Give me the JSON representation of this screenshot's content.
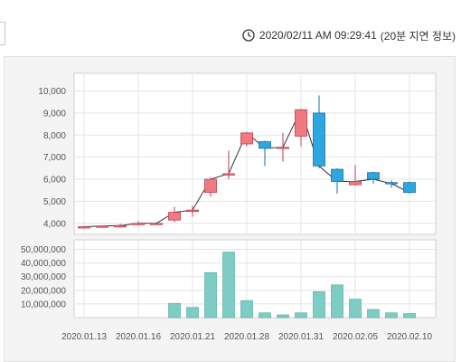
{
  "header": {
    "timestamp": "2020/02/11 AM 09:29:41",
    "note": "(20분 지연 정보)",
    "icon": "clock-icon"
  },
  "chart_data": {
    "type": "candlestick",
    "price_axis": {
      "ticks": [
        4000,
        5000,
        6000,
        7000,
        8000,
        9000,
        10000
      ],
      "tick_labels": [
        "4,000",
        "5,000",
        "6,000",
        "7,000",
        "8,000",
        "9,000",
        "10,000"
      ],
      "ylim": [
        3500,
        10800
      ]
    },
    "volume_axis": {
      "ticks": [
        10000000,
        20000000,
        30000000,
        40000000,
        50000000
      ],
      "tick_labels": [
        "10,000,000",
        "20,000,000",
        "30,000,000",
        "40,000,000",
        "50,000,000"
      ],
      "ylim": [
        0,
        57000000
      ]
    },
    "x_labels": [
      "2020.01.13",
      "2020.01.16",
      "2020.01.21",
      "2020.01.28",
      "2020.01.31",
      "2020.02.05",
      "2020.02.10"
    ],
    "x_label_index": [
      0,
      3,
      6,
      9,
      12,
      15,
      18
    ],
    "colors": {
      "up": "#f07a82",
      "up_stroke": "#b84050",
      "down": "#2ea6e0",
      "down_stroke": "#1a6fa5",
      "volume": "#7ecdc4",
      "volume_stroke": "#4ba59b",
      "line": "#303030"
    },
    "candles": [
      {
        "o": 3800,
        "h": 3880,
        "l": 3760,
        "c": 3850,
        "v": 0
      },
      {
        "o": 3850,
        "h": 3900,
        "l": 3820,
        "c": 3880,
        "v": 0
      },
      {
        "o": 3850,
        "h": 3980,
        "l": 3800,
        "c": 3900,
        "v": 0
      },
      {
        "o": 3950,
        "h": 4100,
        "l": 3920,
        "c": 4000,
        "v": 0
      },
      {
        "o": 3980,
        "h": 4050,
        "l": 3950,
        "c": 4000,
        "v": 0
      },
      {
        "o": 4150,
        "h": 4750,
        "l": 4050,
        "c": 4500,
        "v": 10500000
      },
      {
        "o": 4550,
        "h": 4800,
        "l": 4300,
        "c": 4600,
        "v": 7500000
      },
      {
        "o": 5400,
        "h": 6100,
        "l": 5200,
        "c": 6000,
        "v": 33000000
      },
      {
        "o": 6200,
        "h": 7300,
        "l": 6000,
        "c": 6250,
        "v": 48000000
      },
      {
        "o": 7600,
        "h": 8150,
        "l": 7500,
        "c": 8100,
        "v": 12500000
      },
      {
        "o": 7700,
        "h": 7750,
        "l": 6600,
        "c": 7400,
        "v": 3500000
      },
      {
        "o": 7400,
        "h": 8100,
        "l": 6800,
        "c": 7450,
        "v": 2000000
      },
      {
        "o": 7950,
        "h": 9150,
        "l": 7500,
        "c": 9150,
        "v": 3500000
      },
      {
        "o": 9000,
        "h": 9800,
        "l": 6500,
        "c": 6600,
        "v": 19000000
      },
      {
        "o": 6450,
        "h": 6500,
        "l": 5350,
        "c": 5900,
        "v": 24000000
      },
      {
        "o": 5750,
        "h": 6650,
        "l": 5700,
        "c": 5900,
        "v": 13500000
      },
      {
        "o": 6300,
        "h": 6350,
        "l": 5800,
        "c": 6000,
        "v": 6000000
      },
      {
        "o": 5850,
        "h": 5950,
        "l": 5600,
        "c": 5800,
        "v": 3500000
      },
      {
        "o": 5850,
        "h": 5900,
        "l": 5350,
        "c": 5400,
        "v": 3000000
      }
    ]
  }
}
